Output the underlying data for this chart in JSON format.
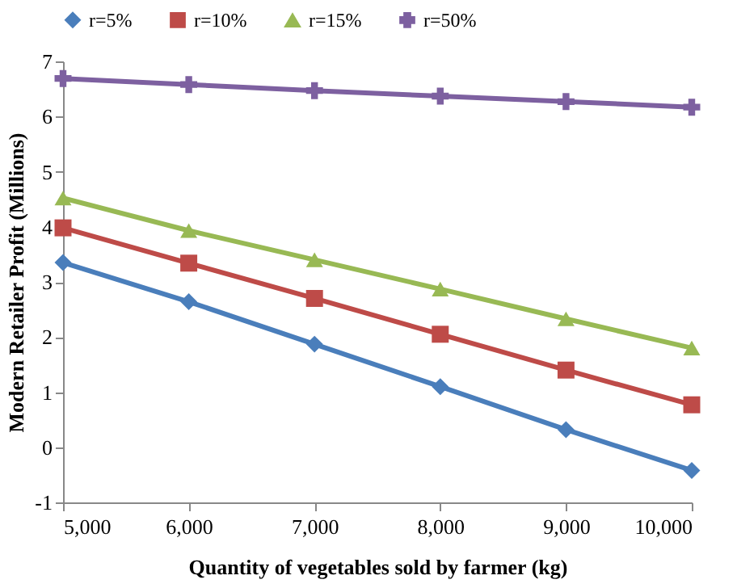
{
  "chart_data": {
    "type": "line",
    "xlabel": "Quantity of vegetables sold by farmer (kg)",
    "ylabel": "Modern Retailer Profit (Millions)",
    "x": [
      5000,
      6000,
      7000,
      8000,
      9000,
      10000
    ],
    "series": [
      {
        "name": "r=5%",
        "color": "#4a7ebb",
        "marker": "diamond",
        "values": [
          3.35,
          2.64,
          1.87,
          1.1,
          0.32,
          -0.42
        ]
      },
      {
        "name": "r=10%",
        "color": "#be4b48",
        "marker": "square",
        "values": [
          3.98,
          3.34,
          2.7,
          2.05,
          1.4,
          0.77
        ]
      },
      {
        "name": "r=15%",
        "color": "#98b954",
        "marker": "triangle",
        "values": [
          4.52,
          3.93,
          3.4,
          2.87,
          2.33,
          1.8
        ]
      },
      {
        "name": "r=50%",
        "color": "#7d60a0",
        "marker": "cross",
        "values": [
          6.69,
          6.58,
          6.47,
          6.37,
          6.27,
          6.17
        ]
      }
    ],
    "xlim": [
      5000,
      10000
    ],
    "xticks": [
      {
        "value": 5000,
        "label": "5,000"
      },
      {
        "value": 6000,
        "label": "6,000"
      },
      {
        "value": 7000,
        "label": "7,000"
      },
      {
        "value": 8000,
        "label": "8,000"
      },
      {
        "value": 9000,
        "label": "9,000"
      },
      {
        "value": 10000,
        "label": "10,000"
      }
    ],
    "ylim": [
      -1,
      7
    ],
    "yticks": [
      -1,
      0,
      1,
      2,
      3,
      4,
      5,
      6,
      7
    ],
    "grid": false,
    "legend": "top",
    "line_style": "solid"
  }
}
